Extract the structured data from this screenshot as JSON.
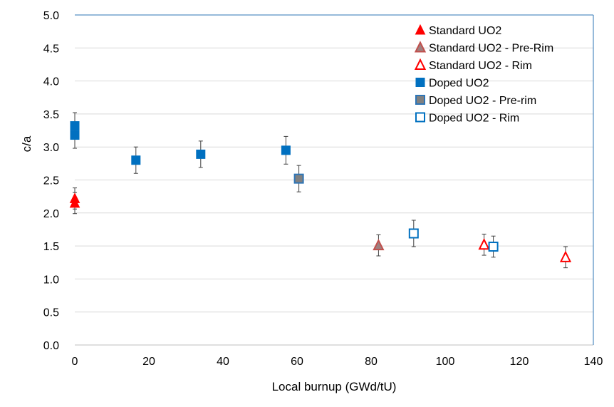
{
  "chart_data": {
    "type": "scatter",
    "title": "",
    "xlabel": "Local burnup (GWd/tU)",
    "ylabel": "c/a",
    "xlim": [
      0,
      140
    ],
    "ylim": [
      0.0,
      5.0
    ],
    "x_ticks": [
      "0",
      "20",
      "40",
      "60",
      "80",
      "100",
      "120",
      "140"
    ],
    "y_ticks": [
      "0.0",
      "0.5",
      "1.0",
      "1.5",
      "2.0",
      "2.5",
      "3.0",
      "3.5",
      "4.0",
      "4.5",
      "5.0"
    ],
    "grid": "horizontal",
    "legend_position": "top-right",
    "series": [
      {
        "name": "Standard UO2",
        "marker": "triangle-filled",
        "color": "#ff0000",
        "points": [
          {
            "x": 0,
            "y": 2.22,
            "err": 0.16
          },
          {
            "x": 0,
            "y": 2.15,
            "err": 0.16
          }
        ]
      },
      {
        "name": "Standard UO2 - Pre-Rim",
        "marker": "triangle-gray",
        "color": "#c0504d",
        "points": [
          {
            "x": 82,
            "y": 1.51,
            "err": 0.16
          }
        ]
      },
      {
        "name": "Standard UO2 - Rim",
        "marker": "triangle-open",
        "color": "#ff0000",
        "points": [
          {
            "x": 110.5,
            "y": 1.52,
            "err": 0.16
          },
          {
            "x": 132.5,
            "y": 1.33,
            "err": 0.16
          }
        ]
      },
      {
        "name": "Doped UO2",
        "marker": "square-filled",
        "color": "#0070c0",
        "points": [
          {
            "x": 0,
            "y": 3.32,
            "err": 0.2
          },
          {
            "x": 0,
            "y": 3.18,
            "err": 0.2
          },
          {
            "x": 16.5,
            "y": 2.8,
            "err": 0.2
          },
          {
            "x": 34,
            "y": 2.89,
            "err": 0.2
          },
          {
            "x": 57,
            "y": 2.95,
            "err": 0.21
          }
        ]
      },
      {
        "name": "Doped UO2 - Pre-rim",
        "marker": "square-gray",
        "color": "#2e75b6",
        "points": [
          {
            "x": 60.5,
            "y": 2.52,
            "err": 0.2
          }
        ]
      },
      {
        "name": "Doped UO2 - Rim",
        "marker": "square-open",
        "color": "#0070c0",
        "points": [
          {
            "x": 91.5,
            "y": 1.69,
            "err": 0.2
          },
          {
            "x": 113,
            "y": 1.49,
            "err": 0.16
          }
        ]
      }
    ]
  }
}
